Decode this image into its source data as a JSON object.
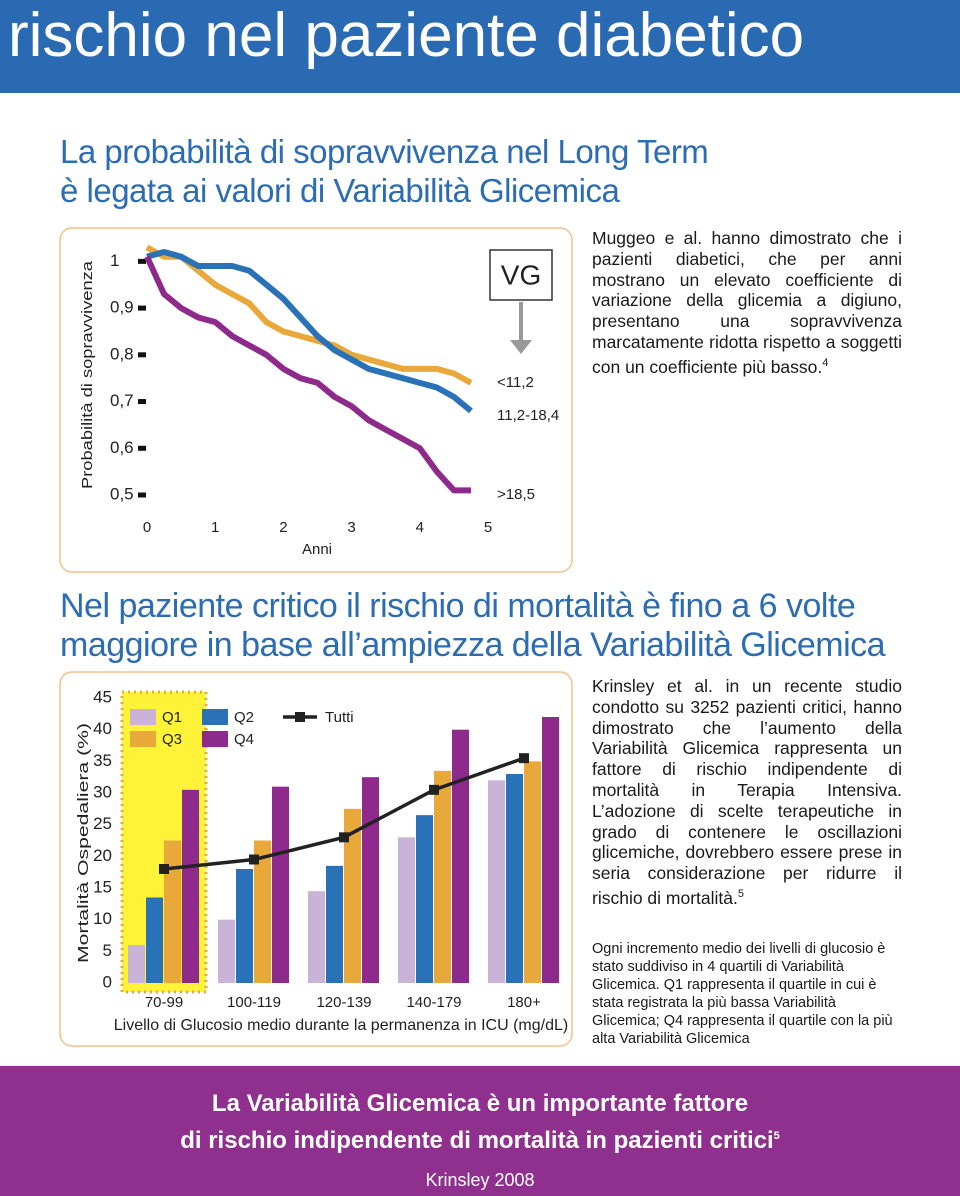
{
  "header": {
    "title": "rischio nel paziente diabetico"
  },
  "section1": {
    "heading": [
      "La probabilità di sopravvivenza nel Long Term",
      "è legata ai valori di Variabilità Glicemica"
    ],
    "text": "Muggeo e al. hanno dimostrato che i pazienti diabetici, che per anni mostrano un elevato coefficiente di variazione della glicemia a digiuno, presentano una sopravvivenza marcatamente ridotta rispetto a soggetti con un coefficiente più basso.",
    "ref": "4"
  },
  "section2": {
    "heading": [
      "Nel paziente critico il rischio di mortalità è fino a 6 volte",
      "maggiore in base all’ampiezza della Variabilità Glicemica"
    ],
    "text": "Krinsley et al. in un recente studio condotto su 3252 pazienti critici, hanno dimostrato che l’aumento della Variabilità Glicemica rappresenta un fattore di rischio indipendente di mortalità in Terapia Intensiva. L’adozione di scelte terapeutiche in grado di contenere le oscillazioni glicemiche, dovrebbero essere prese in seria considerazione per ridurre il rischio di mortalità.",
    "ref": "5",
    "note": "Ogni incremento medio dei livelli di glucosio è stato suddiviso in 4 quartili di Variabilità Glicemica. Q1 rappresenta il quartile in cui è stata registrata la più bassa Variabilità Glicemica; Q4 rappresenta il quartile con la più alta Variabilità Glicemica"
  },
  "footer": {
    "lines": [
      "La Variabilità Glicemica è un importante fattore",
      "di rischio indipendente di mortalità in pazienti critici"
    ],
    "ref": "5",
    "source": "Krinsley 2008"
  },
  "chart_data": [
    {
      "type": "line",
      "x_label": "Anni",
      "y_label": "Probabilità di sopravvivenza",
      "legend_title": "VG",
      "x": [
        0,
        0.25,
        0.5,
        0.75,
        1,
        1.25,
        1.5,
        1.75,
        2,
        2.25,
        2.5,
        2.75,
        3,
        3.25,
        3.5,
        3.75,
        4,
        4.25,
        4.5,
        4.75
      ],
      "xlim": [
        0,
        5
      ],
      "xticks": [
        0,
        1,
        2,
        3,
        4,
        5
      ],
      "ylim": [
        0.5,
        1.05
      ],
      "yticks": [
        {
          "value": 0.5,
          "label": "0,5"
        },
        {
          "value": 0.6,
          "label": "0,6"
        },
        {
          "value": 0.7,
          "label": "0,7"
        },
        {
          "value": 0.8,
          "label": "0,8"
        },
        {
          "value": 0.9,
          "label": "0,9"
        },
        1
      ],
      "series": [
        {
          "name": "<11,2",
          "color": "#e9a93a",
          "values": [
            1.03,
            1.01,
            1.01,
            0.98,
            0.95,
            0.93,
            0.91,
            0.87,
            0.85,
            0.84,
            0.83,
            0.82,
            0.8,
            0.79,
            0.78,
            0.77,
            0.77,
            0.77,
            0.76,
            0.74
          ]
        },
        {
          "name": "11,2-18,4",
          "color": "#2a72b8",
          "values": [
            1.01,
            1.02,
            1.01,
            0.99,
            0.99,
            0.99,
            0.98,
            0.95,
            0.92,
            0.88,
            0.84,
            0.81,
            0.79,
            0.77,
            0.76,
            0.75,
            0.74,
            0.73,
            0.71,
            0.68
          ]
        },
        {
          "name": ">18,5",
          "color": "#8e2a8c",
          "values": [
            1.01,
            0.93,
            0.9,
            0.88,
            0.87,
            0.84,
            0.82,
            0.8,
            0.77,
            0.75,
            0.74,
            0.71,
            0.69,
            0.66,
            0.64,
            0.62,
            0.6,
            0.55,
            0.51,
            0.51
          ]
        }
      ]
    },
    {
      "type": "bar",
      "x_label": "Livello di Glucosio medio durante la permanenza in ICU (mg/dL)",
      "y_label": "Mortalità Ospedaliera (%)",
      "categories": [
        "70-99",
        "100-119",
        "120-139",
        "140-179",
        "180+"
      ],
      "ylim": [
        0,
        45
      ],
      "yticks": [
        0,
        5,
        10,
        15,
        20,
        25,
        30,
        35,
        40,
        45
      ],
      "series": [
        {
          "name": "Q1",
          "color": "#c9b3d9",
          "values": [
            6,
            10,
            14.5,
            23,
            32
          ]
        },
        {
          "name": "Q2",
          "color": "#2a72b8",
          "values": [
            13.5,
            18,
            18.5,
            26.5,
            33
          ]
        },
        {
          "name": "Q3",
          "color": "#e9a93a",
          "values": [
            22.5,
            22.5,
            27.5,
            33.5,
            35
          ]
        },
        {
          "name": "Q4",
          "color": "#8e2a8c",
          "values": [
            30.5,
            31,
            32.5,
            40,
            42
          ]
        },
        {
          "name": "Tutti",
          "color": "#222222",
          "type": "line",
          "values": [
            18,
            19.5,
            23,
            30.5,
            35.5
          ]
        }
      ]
    }
  ]
}
